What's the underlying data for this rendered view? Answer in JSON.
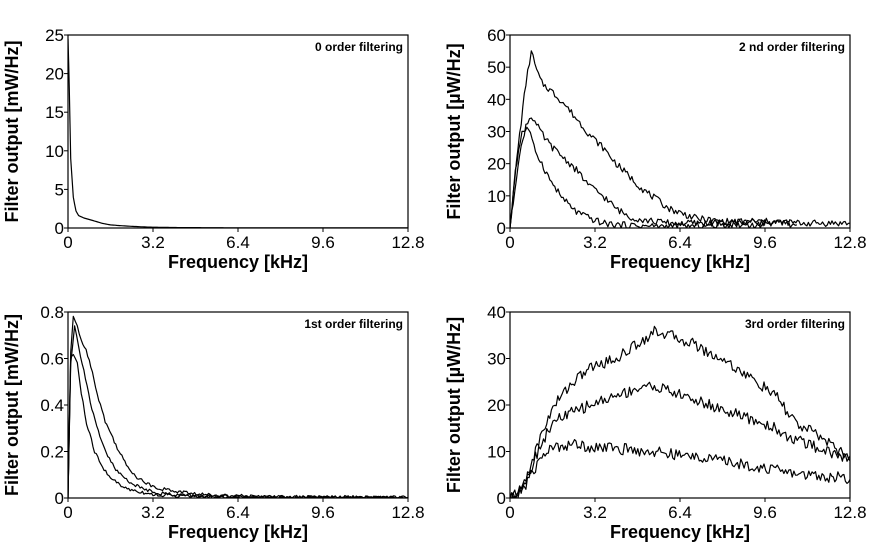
{
  "chart_data": [
    {
      "type": "line",
      "title": "0  order filtering",
      "xlabel": "Frequency [kHz]",
      "ylabel": "Filter output [mW/Hz]",
      "xlim": [
        0,
        12.8
      ],
      "ylim": [
        0,
        25
      ],
      "xticks": [
        "0",
        "3.2",
        "6.4",
        "9.6",
        "12.8"
      ],
      "yticks": [
        "0",
        "5",
        "10",
        "15",
        "20",
        "25"
      ],
      "series": [
        {
          "x": [
            0.0,
            0.05,
            0.1,
            0.2,
            0.3,
            0.4,
            0.6,
            0.8,
            1.0,
            1.3,
            1.6,
            2.0,
            2.5,
            3.0,
            4.0,
            6.0,
            8.0,
            10.0,
            12.8
          ],
          "y": [
            24.5,
            18.0,
            9.0,
            4.0,
            2.2,
            1.6,
            1.3,
            1.1,
            0.9,
            0.6,
            0.4,
            0.3,
            0.2,
            0.12,
            0.06,
            0.03,
            0.02,
            0.01,
            0.01
          ]
        }
      ]
    },
    {
      "type": "line",
      "title": "2 nd order filtering",
      "xlabel": "Frequency [kHz]",
      "ylabel": "Filter output [µW/Hz]",
      "xlim": [
        0,
        12.8
      ],
      "ylim": [
        0,
        60
      ],
      "xticks": [
        "0",
        "3.2",
        "6.4",
        "9.6",
        "12.8"
      ],
      "yticks": [
        "0",
        "10",
        "20",
        "30",
        "40",
        "50",
        "60"
      ],
      "series": [
        {
          "x": [
            0.0,
            0.3,
            0.6,
            0.8,
            1.0,
            1.2,
            1.5,
            2.0,
            2.5,
            3.0,
            3.5,
            4.0,
            5.0,
            6.0,
            7.0,
            8.0,
            9.0,
            10.0,
            11.0,
            12.0,
            12.8
          ],
          "y": [
            0,
            25,
            45,
            55,
            49,
            45,
            43,
            39,
            34,
            29,
            25,
            20,
            12,
            6,
            3,
            2,
            2,
            2,
            1.5,
            1.5,
            1.5
          ]
        },
        {
          "x": [
            0.0,
            0.3,
            0.6,
            0.8,
            1.0,
            1.3,
            1.6,
            2.0,
            2.5,
            3.0,
            3.5,
            4.0,
            4.5,
            5.0,
            5.5,
            6.0,
            7.0,
            8.0,
            9.0,
            10.0,
            10.8
          ],
          "y": [
            0,
            20,
            32,
            35,
            32,
            28,
            25,
            22,
            18,
            13,
            10,
            6,
            3.5,
            2.5,
            2,
            1.5,
            1.5,
            1.5,
            2,
            1.5,
            1
          ]
        },
        {
          "x": [
            0.0,
            0.2,
            0.45,
            0.7,
            0.9,
            1.2,
            1.5,
            2.0,
            2.5,
            3.0,
            3.5,
            4.0,
            4.5,
            5.0,
            6.0,
            7.0,
            8.0,
            9.0,
            9.6
          ],
          "y": [
            0,
            18,
            30,
            31,
            25,
            20,
            15,
            9,
            5,
            3,
            1.5,
            1,
            0.8,
            0.6,
            0.5,
            0.5,
            1,
            1,
            0.8
          ]
        }
      ]
    },
    {
      "type": "line",
      "title": "1st order filtering",
      "xlabel": "Frequency [kHz]",
      "ylabel": "Filter output [mW/Hz]",
      "xlim": [
        0,
        12.8
      ],
      "ylim": [
        0,
        0.8
      ],
      "xticks": [
        "0",
        "3.2",
        "6.4",
        "9.6",
        "12.8"
      ],
      "yticks": [
        "0",
        "0.2",
        "0.4",
        "0.6",
        "0.8"
      ],
      "series": [
        {
          "x": [
            0.0,
            0.1,
            0.2,
            0.35,
            0.5,
            0.8,
            1.1,
            1.4,
            1.8,
            2.2,
            2.6,
            3.0,
            3.5,
            4.0,
            5.0,
            6.0,
            7.0,
            8.0,
            10.0,
            12.8
          ],
          "y": [
            0.0,
            0.62,
            0.78,
            0.74,
            0.68,
            0.6,
            0.45,
            0.33,
            0.23,
            0.14,
            0.09,
            0.06,
            0.04,
            0.03,
            0.015,
            0.01,
            0.006,
            0.004,
            0.003,
            0.002
          ]
        },
        {
          "x": [
            0.0,
            0.1,
            0.25,
            0.4,
            0.6,
            0.9,
            1.2,
            1.5,
            1.8,
            2.2,
            2.6,
            3.0,
            3.5,
            4.0,
            5.0,
            6.0,
            8.0,
            10.0,
            12.8
          ],
          "y": [
            0.0,
            0.58,
            0.74,
            0.65,
            0.55,
            0.38,
            0.26,
            0.18,
            0.12,
            0.08,
            0.05,
            0.035,
            0.02,
            0.015,
            0.008,
            0.005,
            0.003,
            0.002,
            0.001
          ]
        },
        {
          "x": [
            0.0,
            0.1,
            0.2,
            0.35,
            0.5,
            0.7,
            1.0,
            1.3,
            1.6,
            2.0,
            2.4,
            2.8,
            3.2,
            4.0,
            5.0,
            6.0,
            8.0,
            12.8
          ],
          "y": [
            0.0,
            0.6,
            0.62,
            0.58,
            0.45,
            0.32,
            0.2,
            0.13,
            0.09,
            0.05,
            0.035,
            0.025,
            0.015,
            0.01,
            0.005,
            0.003,
            0.002,
            0.001
          ]
        }
      ]
    },
    {
      "type": "line",
      "title": "3rd order filtering",
      "xlabel": "Frequency [kHz]",
      "ylabel": "Filter output [µW/Hz]",
      "xlim": [
        0,
        12.8
      ],
      "ylim": [
        0,
        40
      ],
      "xticks": [
        "0",
        "3.2",
        "6.4",
        "9.6",
        "12.8"
      ],
      "yticks": [
        "0",
        "10",
        "20",
        "30",
        "40"
      ],
      "series": [
        {
          "x": [
            0.0,
            0.3,
            0.6,
            0.9,
            1.2,
            1.5,
            1.8,
            2.2,
            2.6,
            3.0,
            3.5,
            4.0,
            4.5,
            5.0,
            5.5,
            6.0,
            6.5,
            7.0,
            7.5,
            8.0,
            8.5,
            9.0,
            9.5,
            10.0,
            10.5,
            11.0,
            11.5,
            12.0,
            12.4,
            12.8
          ],
          "y": [
            0,
            1,
            4,
            9,
            14,
            18,
            21,
            24,
            26,
            28,
            29,
            30,
            32,
            34,
            36,
            35,
            34,
            33,
            31,
            30,
            28,
            26,
            24,
            22,
            18,
            15,
            14,
            12,
            10,
            9
          ]
        },
        {
          "x": [
            0.0,
            0.3,
            0.6,
            0.9,
            1.2,
            1.5,
            1.8,
            2.2,
            2.6,
            3.0,
            3.5,
            4.0,
            4.5,
            5.0,
            5.5,
            6.0,
            6.5,
            7.0,
            7.5,
            8.0,
            8.5,
            9.0,
            9.5,
            10.0,
            10.5,
            11.0,
            11.5,
            12.0,
            12.4,
            12.8
          ],
          "y": [
            0,
            1,
            4,
            8,
            12,
            15,
            17,
            18,
            19,
            20,
            21,
            22,
            23,
            24,
            24,
            23,
            22,
            21,
            20,
            19,
            18,
            17,
            16,
            15,
            13,
            12,
            11,
            10,
            9,
            8
          ]
        },
        {
          "x": [
            0.0,
            0.3,
            0.6,
            0.9,
            1.2,
            1.5,
            1.8,
            2.2,
            2.6,
            3.0,
            3.5,
            4.0,
            4.5,
            5.0,
            5.5,
            6.0,
            6.5,
            7.0,
            7.5,
            8.0,
            8.5,
            9.0,
            9.5,
            10.0,
            10.5,
            11.0,
            11.5,
            12.0,
            12.4,
            12.8
          ],
          "y": [
            0,
            1,
            3,
            6,
            9,
            10.5,
            11,
            11.5,
            11.5,
            11,
            11,
            10.5,
            10.5,
            10,
            10,
            9.5,
            9,
            9,
            8.5,
            8,
            7.5,
            7,
            6.5,
            6,
            5.5,
            5,
            5,
            4.5,
            4.5,
            4
          ]
        }
      ]
    }
  ]
}
